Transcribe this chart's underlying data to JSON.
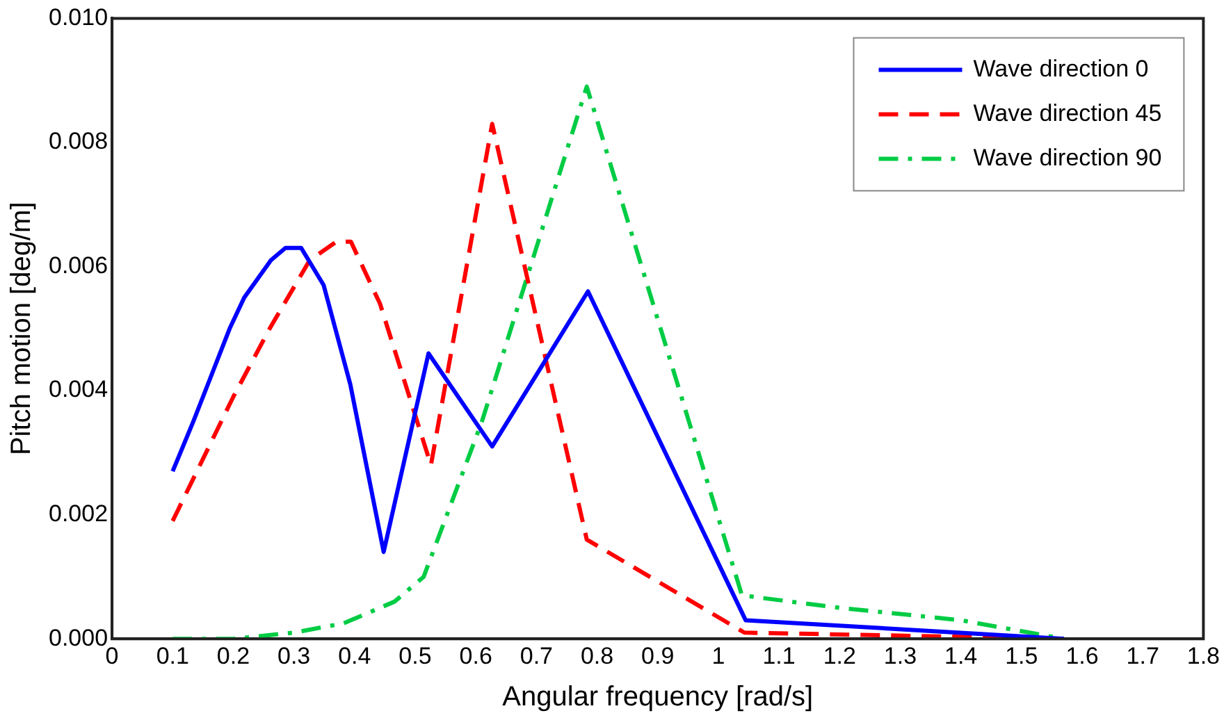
{
  "chart_data": {
    "type": "line",
    "xlabel": "Angular frequency [rad/s]",
    "ylabel": "Pitch motion [deg/m]",
    "xlim": [
      0,
      1.8
    ],
    "xticks": [
      0,
      0.1,
      0.2,
      0.3,
      0.4,
      0.5,
      0.6,
      0.7,
      0.8,
      0.9,
      1,
      1.1,
      1.2,
      1.3,
      1.4,
      1.5,
      1.6,
      1.7,
      1.8
    ],
    "ylim": [
      0,
      0.01
    ],
    "yticks": [
      {
        "value": 0,
        "label": "0.000"
      },
      {
        "value": 0.002,
        "label": "0.002"
      },
      {
        "value": 0.004,
        "label": "0.004"
      },
      {
        "value": 0.006,
        "label": "0.006"
      },
      {
        "value": 0.008,
        "label": "0.008"
      },
      {
        "value": 0.01,
        "label": "0.010"
      }
    ],
    "grid": false,
    "legend": "top right",
    "marker": "none",
    "series": [
      {
        "name": "Wave direction 0",
        "color": "#0000ff",
        "line_style": "solid",
        "x": [
          0.1,
          0.134,
          0.162,
          0.194,
          0.218,
          0.262,
          0.286,
          0.312,
          0.349,
          0.393,
          0.448,
          0.522,
          0.627,
          0.785,
          1.045,
          1.57
        ],
        "values": [
          0.0027,
          0.0035,
          0.0042,
          0.005,
          0.0055,
          0.0061,
          0.0063,
          0.0063,
          0.0057,
          0.0041,
          0.0014,
          0.0046,
          0.0031,
          0.0056,
          0.0003,
          0
        ]
      },
      {
        "name": "Wave direction 45",
        "color": "#ff0000",
        "line_style": "dashed",
        "x": [
          0.1,
          0.2,
          0.26,
          0.326,
          0.37,
          0.394,
          0.442,
          0.526,
          0.627,
          0.783,
          1.043,
          1.57
        ],
        "values": [
          0.0019,
          0.0039,
          0.005,
          0.0061,
          0.0064,
          0.0064,
          0.0054,
          0.0028,
          0.0083,
          0.0016,
          0.0001,
          0
        ]
      },
      {
        "name": "Wave direction 90",
        "color": "#00cc44",
        "line_style": "dashdot",
        "x": [
          0.1,
          0.2,
          0.3,
          0.382,
          0.466,
          0.514,
          0.61,
          0.783,
          1.039,
          1.2,
          1.4,
          1.57
        ],
        "values": [
          0,
          0,
          0.0001,
          0.00025,
          0.0006,
          0.001,
          0.0035,
          0.0089,
          0.0007,
          0.0005,
          0.0003,
          0
        ]
      }
    ]
  }
}
